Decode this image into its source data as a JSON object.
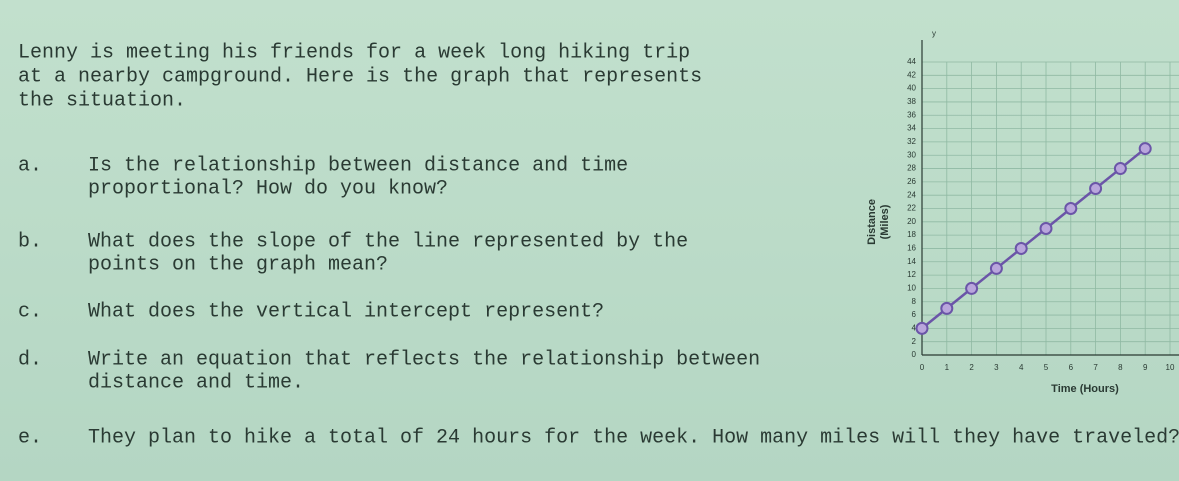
{
  "worksheet": {
    "intro": [
      "Lenny is meeting his friends for a week long hiking trip",
      "at a nearby campground. Here is the graph that represents",
      "the situation."
    ],
    "questions": [
      {
        "letter": "a.",
        "lines": [
          "Is the relationship between distance and time",
          "proportional? How do you know?"
        ]
      },
      {
        "letter": "b.",
        "lines": [
          "What does the slope of the line represented by the",
          "points on the graph mean?"
        ]
      },
      {
        "letter": "c.",
        "lines": [
          "What does the vertical intercept represent?"
        ]
      },
      {
        "letter": "d.",
        "lines": [
          "Write an equation that reflects the relationship between",
          "distance and time."
        ]
      },
      {
        "letter": "e.",
        "lines": [
          "They plan to hike a total of 24 hours for the week. How many miles will they have traveled?"
        ]
      }
    ]
  },
  "chart_data": {
    "type": "line",
    "axis_symbol": "y",
    "xlabel": "Time (Hours)",
    "ylabel": [
      "Distance",
      "(Miles)"
    ],
    "x": [
      0,
      1,
      2,
      3,
      4,
      5,
      6,
      7,
      8,
      9
    ],
    "series": [
      {
        "name": "Distance",
        "color": "#6b55a8",
        "values": [
          4,
          7,
          10,
          13,
          16,
          19,
          22,
          25,
          28,
          31
        ]
      }
    ],
    "xlim": [
      0,
      10
    ],
    "xticks": [
      0,
      1,
      2,
      3,
      4,
      5,
      6,
      7,
      8,
      9,
      10
    ],
    "ylim": [
      0,
      44
    ],
    "yticks": [
      0,
      2,
      4,
      6,
      8,
      10,
      12,
      14,
      16,
      18,
      20,
      22,
      24,
      26,
      28,
      30,
      32,
      34,
      36,
      38,
      40,
      42,
      44
    ],
    "grid": true
  }
}
